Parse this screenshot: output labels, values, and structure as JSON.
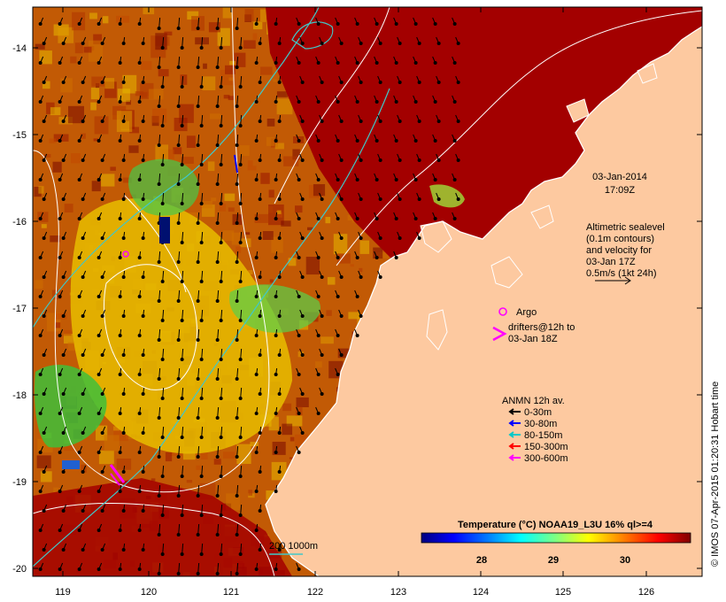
{
  "axes": {
    "lon_ticks": [
      "119",
      "120",
      "121",
      "122",
      "123",
      "124",
      "125",
      "126"
    ],
    "lat_ticks": [
      "-14",
      "-15",
      "-16",
      "-17",
      "-18",
      "-19",
      "-20"
    ]
  },
  "annotations": {
    "date": "03-Jan-2014",
    "time": "17:09Z",
    "altimetry": [
      "Altimetric sealevel",
      "(0.1m contours)",
      "and velocity for",
      "03-Jan 17Z",
      "0.5m/s (1kt 24h)"
    ],
    "argo": "Argo",
    "drifters": [
      "drifters@12h to",
      "03-Jan 18Z"
    ],
    "scale_bar": "200  1000m",
    "credit": "© IMOS 07-Apr-2015 01:20:31 Hobart time"
  },
  "legend": {
    "title": "ANMN 12h av.",
    "items": [
      {
        "label": "0-30m",
        "color": "#000000"
      },
      {
        "label": "30-80m",
        "color": "#0000ff"
      },
      {
        "label": "80-150m",
        "color": "#00c8c8"
      },
      {
        "label": "150-300m",
        "color": "#ff0000"
      },
      {
        "label": "300-600m",
        "color": "#ff00ff"
      }
    ]
  },
  "colorbar": {
    "title": "Temperature (°C) NOAA19_L3U 16% ql>=4",
    "ticks": [
      "28",
      "29",
      "30"
    ],
    "colors": [
      "#00007f",
      "#0000ff",
      "#0080ff",
      "#00ffff",
      "#80ff80",
      "#ffff00",
      "#ff8000",
      "#ff0000",
      "#800000"
    ]
  },
  "colors": {
    "land": "#fdc9a0",
    "warm_sea": "#a00000",
    "mid_sea": "#d46a00",
    "cool_sea": "#e8c000",
    "coolest_sea": "#4fc83a"
  }
}
